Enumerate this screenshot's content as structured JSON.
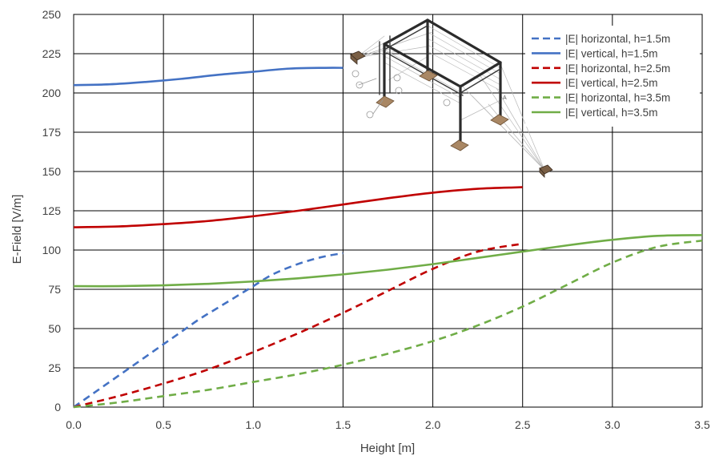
{
  "chart_data": {
    "type": "line",
    "xlabel": "Height [m]",
    "ylabel": "E-Field [V/m]",
    "xlim": [
      0,
      3.5
    ],
    "ylim": [
      0,
      250
    ],
    "x_ticks": [
      "0.0",
      "0.5",
      "1.0",
      "1.5",
      "2.0",
      "2.5",
      "3.0",
      "3.5"
    ],
    "y_ticks": [
      "0",
      "25",
      "50",
      "75",
      "100",
      "125",
      "150",
      "175",
      "200",
      "225",
      "250"
    ],
    "grid": true,
    "legend_position": "top-right",
    "inset_image": "structure-sketch",
    "series": [
      {
        "name": "|E| horizontal, h=1.5m",
        "color": "#4472C4",
        "dash": "dashed",
        "x": [
          0,
          0.1,
          0.2,
          0.3,
          0.4,
          0.5,
          0.6,
          0.7,
          0.8,
          0.9,
          1.0,
          1.1,
          1.2,
          1.3,
          1.4,
          1.5
        ],
        "y": [
          0,
          8,
          16,
          24,
          32,
          40,
          48,
          56,
          63,
          70,
          77,
          84,
          89,
          93,
          96,
          98
        ]
      },
      {
        "name": "|E| vertical, h=1.5m",
        "color": "#4472C4",
        "dash": "solid",
        "x": [
          0,
          0.2,
          0.4,
          0.6,
          0.8,
          1.0,
          1.2,
          1.4,
          1.5
        ],
        "y": [
          205,
          205.5,
          207,
          209,
          211.5,
          213.5,
          215.5,
          216,
          216
        ]
      },
      {
        "name": "|E| horizontal, h=2.5m",
        "color": "#C00000",
        "dash": "dashed",
        "x": [
          0,
          0.25,
          0.5,
          0.75,
          1.0,
          1.25,
          1.5,
          1.75,
          2.0,
          2.25,
          2.5
        ],
        "y": [
          0,
          7,
          15,
          24,
          35,
          47,
          60,
          74,
          88,
          99,
          104
        ]
      },
      {
        "name": "|E| vertical, h=2.5m",
        "color": "#C00000",
        "dash": "solid",
        "x": [
          0,
          0.25,
          0.5,
          0.75,
          1.0,
          1.25,
          1.5,
          1.75,
          2.0,
          2.25,
          2.5
        ],
        "y": [
          114.5,
          115,
          116.5,
          118.5,
          121.5,
          125,
          129,
          133,
          136.5,
          139,
          140
        ]
      },
      {
        "name": "|E| horizontal, h=3.5m",
        "color": "#70AD47",
        "dash": "dashed",
        "x": [
          0,
          0.25,
          0.5,
          0.75,
          1.0,
          1.25,
          1.5,
          1.75,
          2.0,
          2.25,
          2.5,
          2.75,
          3.0,
          3.25,
          3.5
        ],
        "y": [
          0,
          3,
          7,
          11,
          16,
          21,
          27,
          34,
          42,
          52,
          64,
          78,
          92,
          102,
          106
        ]
      },
      {
        "name": "|E| vertical, h=3.5m",
        "color": "#70AD47",
        "dash": "solid",
        "x": [
          0,
          0.25,
          0.5,
          0.75,
          1.0,
          1.25,
          1.5,
          1.75,
          2.0,
          2.25,
          2.5,
          2.75,
          3.0,
          3.25,
          3.5
        ],
        "y": [
          77,
          77,
          77.5,
          78.5,
          80,
          82,
          84.5,
          87.5,
          91,
          95,
          99,
          103,
          106.5,
          109,
          109.5
        ]
      }
    ]
  }
}
